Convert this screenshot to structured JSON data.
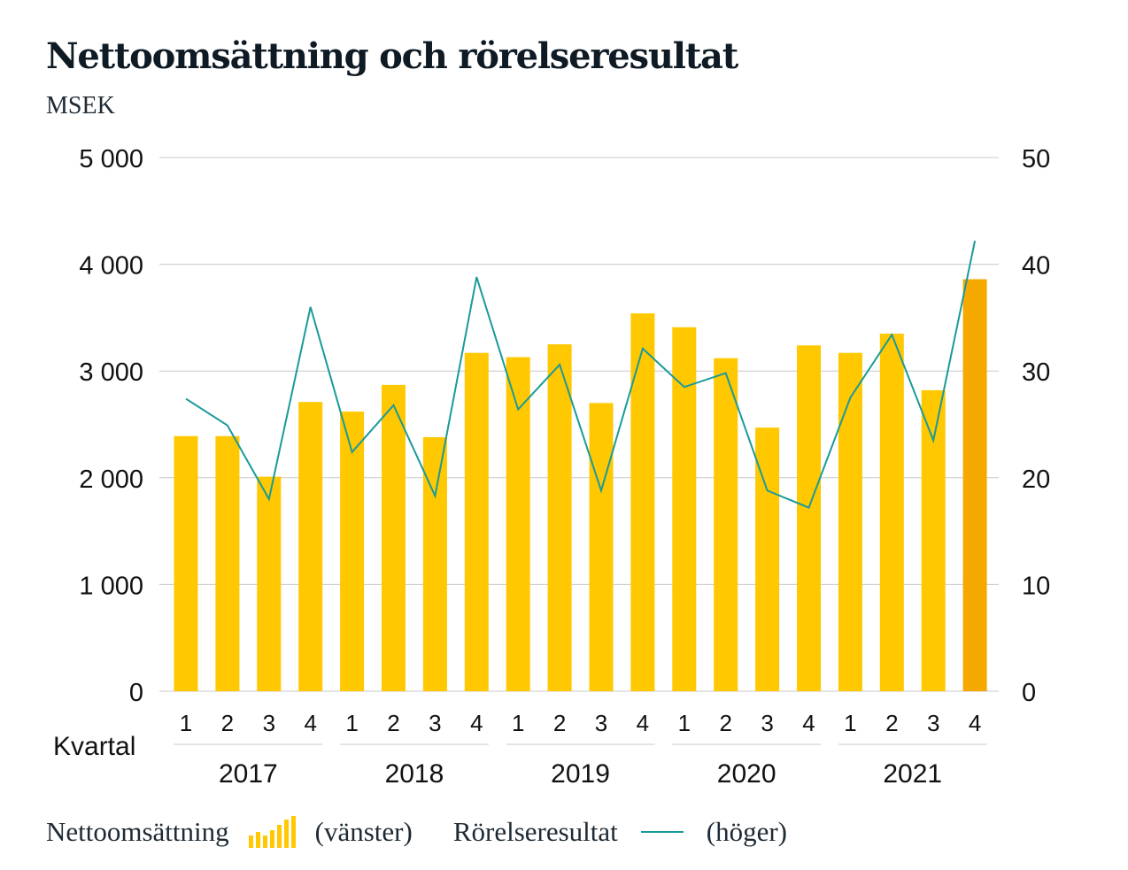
{
  "title": "Nettoomsättning och rörelseresultat",
  "subtitle": "MSEK",
  "colors": {
    "bar": "#ffc800",
    "bar_highlight": "#f5a800",
    "line": "#1a9a9a",
    "grid": "#c8c8c8"
  },
  "legend": {
    "series1_label": "Nettoomsättning",
    "series1_icon": "bar-chart-icon",
    "series1_axis": "(vänster)",
    "series2_label": "Rörelseresultat",
    "series2_icon": "line-icon",
    "series2_axis": "(höger)"
  },
  "chart_data": {
    "type": "bar",
    "xlabel": "Kvartal",
    "years": [
      "2017",
      "2018",
      "2019",
      "2020",
      "2021"
    ],
    "quarters": [
      "1",
      "2",
      "3",
      "4"
    ],
    "categories": [
      "1",
      "2",
      "3",
      "4",
      "1",
      "2",
      "3",
      "4",
      "1",
      "2",
      "3",
      "4",
      "1",
      "2",
      "3",
      "4",
      "1",
      "2",
      "3",
      "4"
    ],
    "left_axis": {
      "ylim": [
        0,
        5000
      ],
      "ticks": [
        0,
        1000,
        2000,
        3000,
        4000,
        5000
      ],
      "tick_labels": [
        "0",
        "1 000",
        "2 000",
        "3 000",
        "4 000",
        "5 000"
      ]
    },
    "right_axis": {
      "ylim": [
        0,
        50
      ],
      "ticks": [
        0,
        10,
        20,
        30,
        40,
        50
      ],
      "tick_labels": [
        "0",
        "10",
        "20",
        "30",
        "40",
        "50"
      ]
    },
    "grid": true,
    "legend_position": "bottom",
    "series": [
      {
        "name": "Nettoomsättning",
        "type": "bar",
        "axis": "left",
        "values": [
          2390,
          2390,
          2010,
          2710,
          2620,
          2870,
          2380,
          3170,
          3130,
          3250,
          2700,
          3540,
          3410,
          3120,
          2470,
          3240,
          3170,
          3350,
          2820,
          3860
        ],
        "highlight_index": 19
      },
      {
        "name": "Rörelseresultat",
        "type": "line",
        "axis": "right",
        "values": [
          27.4,
          24.9,
          18.0,
          36.0,
          22.4,
          26.8,
          18.3,
          38.8,
          26.4,
          30.6,
          18.8,
          32.1,
          28.5,
          29.8,
          18.8,
          17.2,
          27.5,
          33.4,
          23.5,
          42.2
        ]
      }
    ]
  }
}
